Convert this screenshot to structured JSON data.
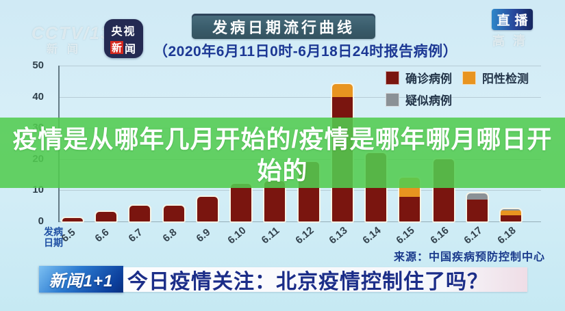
{
  "header": {
    "channel_watermark_line1": "CCTV/13",
    "channel_watermark_line2": "新闻",
    "app_logo": {
      "top": "央视",
      "bottom_red": "新",
      "bottom_white": "闻"
    },
    "chart_title": "发病日期流行曲线",
    "chart_subtitle": "（2020年6月11日0时-6月18日24时报告病例）",
    "live_badge": "直播",
    "hd_watermark": "高清"
  },
  "chart_data": {
    "type": "bar",
    "stacked": true,
    "title": "发病日期流行曲线",
    "subtitle": "（2020年6月11日0时-6月18日24时报告病例）",
    "xlabel": "发病日期",
    "ylabel": "",
    "ylim": [
      0,
      50
    ],
    "yticks": [
      0,
      10,
      20,
      30,
      40,
      50
    ],
    "grid": true,
    "legend_position": "top-right",
    "categories": [
      "6.5",
      "6.6",
      "6.7",
      "6.8",
      "6.9",
      "6.10",
      "6.11",
      "6.12",
      "6.13",
      "6.14",
      "6.15",
      "6.16",
      "6.17",
      "6.18"
    ],
    "series": [
      {
        "name": "确诊病例",
        "color": "#7a150f",
        "values": [
          1,
          3,
          5,
          5,
          8,
          12,
          13,
          19,
          40,
          22,
          8,
          20,
          7,
          2
        ]
      },
      {
        "name": "阳性检测",
        "color": "#e89420",
        "values": [
          0,
          0,
          0,
          0,
          0,
          0,
          0,
          0,
          4,
          0,
          6,
          0,
          0,
          1.5
        ]
      },
      {
        "name": "疑似病例",
        "color": "#8b9196",
        "values": [
          0,
          0,
          0,
          0,
          0,
          0,
          0,
          0,
          0,
          0,
          0,
          0,
          2,
          0.5
        ]
      }
    ],
    "source": "来源：中国疾病预防控制中心"
  },
  "overlay": {
    "text": "疫情是从哪年几月开始的/疫情是哪年哪月哪日开始的",
    "band_color": "#52cc50"
  },
  "bottom_banner": {
    "program_logo": "新闻1+1",
    "headline": "今日疫情关注：北京疫情控制住了吗？"
  }
}
